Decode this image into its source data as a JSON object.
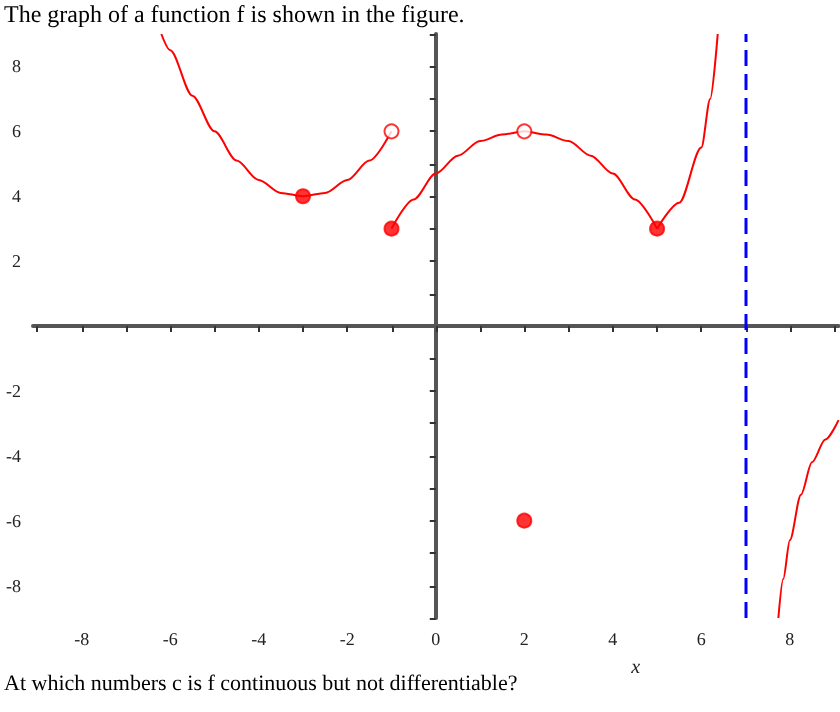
{
  "chart_data": {
    "type": "line",
    "title": "The graph of a function f is shown in the figure.",
    "xlabel": "x",
    "annotations": [
      "At which numbers c is f continuous but not differentiable?"
    ],
    "xlim": [
      -9.1,
      9.1
    ],
    "ylim": [
      -9,
      9
    ],
    "xticks": [
      {
        "value": -9,
        "label": null
      },
      -8,
      {
        "value": -7,
        "label": null
      },
      -6,
      {
        "value": -5,
        "label": null
      },
      -4,
      {
        "value": -3,
        "label": null
      },
      -2,
      {
        "value": -1,
        "label": null
      },
      0,
      {
        "value": 1,
        "label": null
      },
      2,
      {
        "value": 3,
        "label": null
      },
      4,
      {
        "value": 5,
        "label": null
      },
      6,
      {
        "value": 7,
        "label": null
      },
      8,
      {
        "value": 9,
        "label": null
      }
    ],
    "yticks": [
      {
        "value": -9,
        "label": null
      },
      -8,
      {
        "value": -7,
        "label": null
      },
      -6,
      {
        "value": -5,
        "label": null
      },
      -4,
      {
        "value": -3,
        "label": null
      },
      -2,
      {
        "value": -1,
        "label": null
      },
      {
        "value": 1,
        "label": null
      },
      2,
      {
        "value": 3,
        "label": null
      },
      4,
      {
        "value": 5,
        "label": null
      },
      6,
      {
        "value": 7,
        "label": null
      },
      8,
      {
        "value": 9,
        "label": null
      }
    ],
    "grid": false,
    "series": [
      {
        "color": "#ff0000",
        "marker": "none",
        "x": [
          -6.2,
          -6,
          -5.5,
          -5,
          -4.5,
          -4,
          -3.5,
          -3,
          -2.5,
          -2,
          -1.5,
          -1
        ],
        "values": [
          9,
          8.5,
          7.1,
          6,
          5.1,
          4.5,
          4.1,
          4,
          4.1,
          4.5,
          5.1,
          6
        ]
      },
      {
        "color": "#ff0000",
        "marker": "none",
        "x": [
          -1,
          -0.5,
          0,
          0.5,
          1,
          1.5,
          2,
          2.5,
          3,
          3.5,
          4,
          4.5,
          5
        ],
        "values": [
          3,
          3.9,
          4.7,
          5.25,
          5.7,
          5.9,
          6,
          5.9,
          5.7,
          5.25,
          4.7,
          3.9,
          3
        ]
      },
      {
        "color": "#ff0000",
        "marker": "none",
        "x": [
          5,
          5.5,
          6,
          6.2,
          6.37
        ],
        "values": [
          3,
          3.8,
          5.5,
          7,
          9
        ]
      },
      {
        "color": "#ff0000",
        "marker": "none",
        "x": [
          7.74,
          7.85,
          8,
          8.25,
          8.5,
          8.8,
          9.1
        ],
        "values": [
          -9,
          -7.8,
          -6.6,
          -5.2,
          -4.2,
          -3.5,
          -2.9
        ]
      },
      {
        "type": "scatter",
        "color": "#ff0000",
        "marker": "circle",
        "x": [
          -3,
          -1,
          5,
          2
        ],
        "values": [
          4,
          3,
          3,
          -6
        ]
      },
      {
        "type": "scatter",
        "color": "#ffffff",
        "marker": "circle",
        "x": [
          -1,
          2
        ],
        "values": [
          6,
          6
        ]
      }
    ],
    "ref_lines": [
      {
        "axis": "x",
        "value": 7,
        "color": "#0000ff",
        "line_style": "dashed"
      }
    ]
  }
}
